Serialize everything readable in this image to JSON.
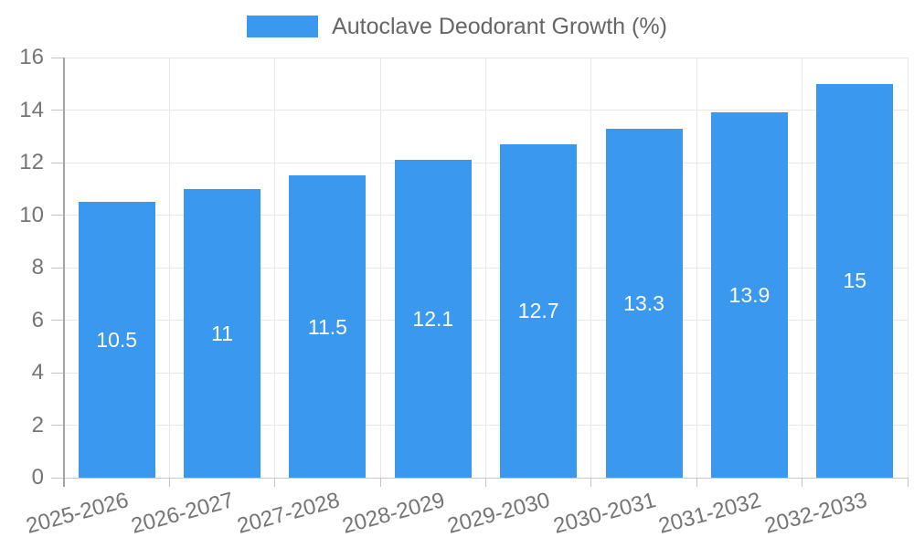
{
  "chart_data": {
    "type": "bar",
    "title": "Autoclave Deodorant Growth (%)",
    "categories": [
      "2025-2026",
      "2026-2027",
      "2027-2028",
      "2028-2029",
      "2029-2030",
      "2030-2031",
      "2031-2032",
      "2032-2033"
    ],
    "values": [
      10.5,
      11,
      11.5,
      12.1,
      12.7,
      13.3,
      13.9,
      15
    ],
    "value_labels": [
      "10.5",
      "11",
      "11.5",
      "12.1",
      "12.7",
      "13.3",
      "13.9",
      "15"
    ],
    "xlabel": "",
    "ylabel": "",
    "ylim": [
      0,
      16
    ],
    "yticks": [
      0,
      2,
      4,
      6,
      8,
      10,
      12,
      14,
      16
    ],
    "grid": true,
    "legend_position": "top",
    "colors": {
      "bar": "#3a99ee",
      "value_label": "#ffffff",
      "axis_text": "#757575",
      "title_text": "#666666",
      "gridline": "#e8e8e8",
      "axis_line": "#a3a3a3",
      "baseline": "#c9c9c9",
      "tick": "#c4c4c4"
    }
  }
}
